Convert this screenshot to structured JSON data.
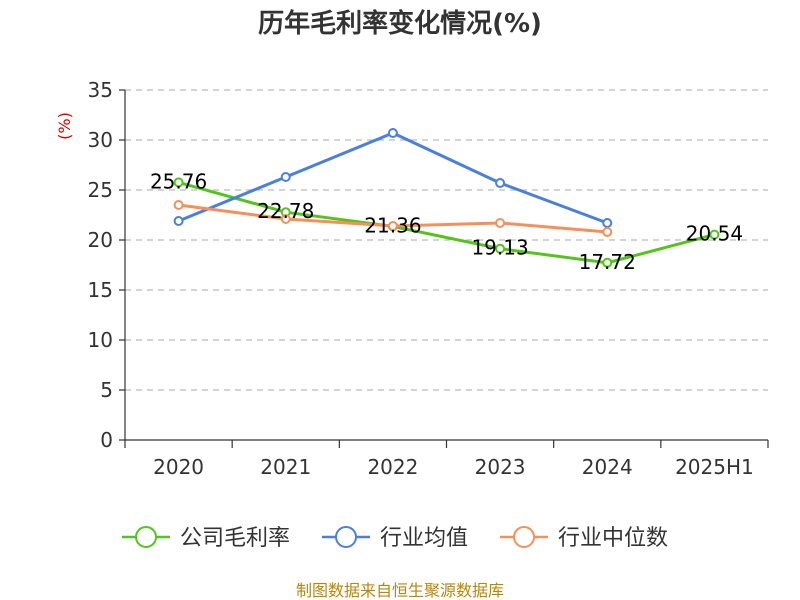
{
  "chart_data": {
    "type": "line",
    "title": "历年毛利率变化情况(%)",
    "unit_label": "(%)",
    "categories": [
      "2020",
      "2021",
      "2022",
      "2023",
      "2024",
      "2025H1"
    ],
    "ylim": [
      0,
      35
    ],
    "yticks": [
      "0",
      "5",
      "10",
      "15",
      "20",
      "25",
      "30",
      "35"
    ],
    "grid": true,
    "legend_position": "bottom",
    "series": [
      {
        "name": "公司毛利率",
        "color": "#52c41a",
        "values": [
          25.76,
          22.78,
          21.36,
          19.13,
          17.72,
          20.54
        ],
        "labels": [
          "25.76",
          "22.78",
          "21.36",
          "19.13",
          "17.72",
          "20.54"
        ]
      },
      {
        "name": "行业均值",
        "color": "#4a7fdc",
        "values": [
          21.9,
          26.3,
          30.7,
          25.7,
          21.7,
          null
        ]
      },
      {
        "name": "行业中位数",
        "color": "#f5905a",
        "values": [
          23.5,
          22.1,
          21.4,
          21.7,
          20.8,
          null
        ]
      }
    ]
  },
  "source": "制图数据来自恒生聚源数据库"
}
